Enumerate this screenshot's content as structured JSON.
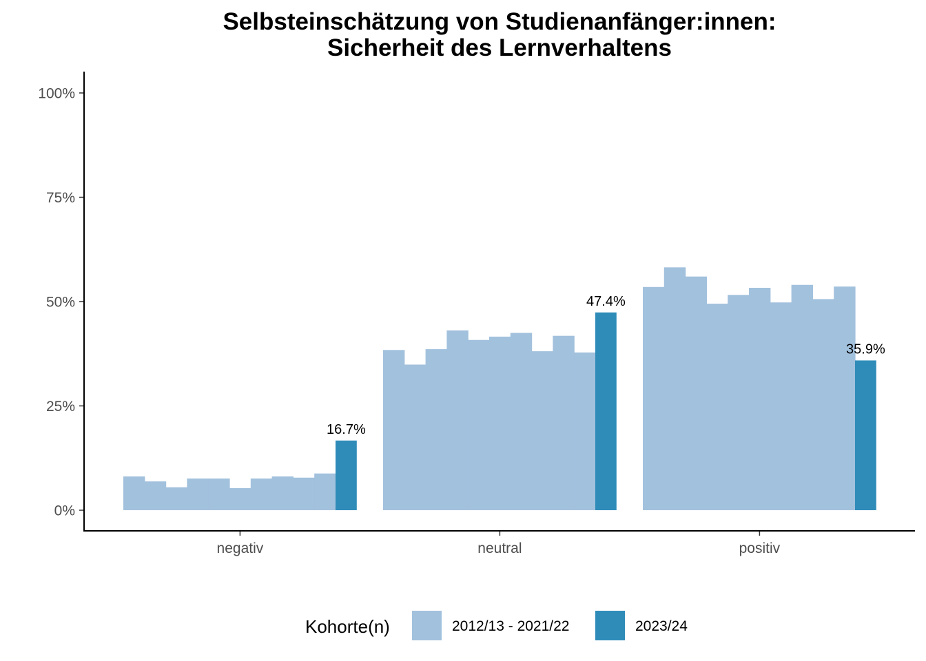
{
  "chart_data": {
    "type": "bar",
    "title_lines": [
      "Selbsteinschätzung von Studienanfänger:innen:",
      "Sicherheit des Lernverhaltens"
    ],
    "categories": [
      "negativ",
      "neutral",
      "positiv"
    ],
    "ylim": [
      0,
      1.05
    ],
    "y_ticks": [
      {
        "value": 0,
        "label": "0%"
      },
      {
        "value": 0.25,
        "label": "25%"
      },
      {
        "value": 0.5,
        "label": "50%"
      },
      {
        "value": 0.75,
        "label": "75%"
      },
      {
        "value": 1.0,
        "label": "100%"
      }
    ],
    "grid": false,
    "legend_position": "bottom",
    "series": [
      {
        "name": "2012/13 - 2021/22",
        "color": "#a2c1dd",
        "values": [
          [
            0.081,
            0.069,
            0.055,
            0.076,
            0.076,
            0.053,
            0.076,
            0.081,
            0.078,
            0.088
          ],
          [
            0.384,
            0.349,
            0.386,
            0.431,
            0.408,
            0.416,
            0.425,
            0.381,
            0.418,
            0.378
          ],
          [
            0.535,
            0.582,
            0.56,
            0.495,
            0.516,
            0.533,
            0.498,
            0.54,
            0.506,
            0.536
          ]
        ]
      },
      {
        "name": "2023/24",
        "color": "#2f8cb9",
        "values": [
          0.167,
          0.474,
          0.359
        ],
        "labels": [
          "16.7%",
          "47.4%",
          "35.9%"
        ]
      }
    ]
  },
  "legend": {
    "title": "Kohorte(n)",
    "items": [
      {
        "label": "2012/13 - 2021/22",
        "color": "#a2c1dd"
      },
      {
        "label": "2023/24",
        "color": "#2f8cb9"
      }
    ]
  }
}
